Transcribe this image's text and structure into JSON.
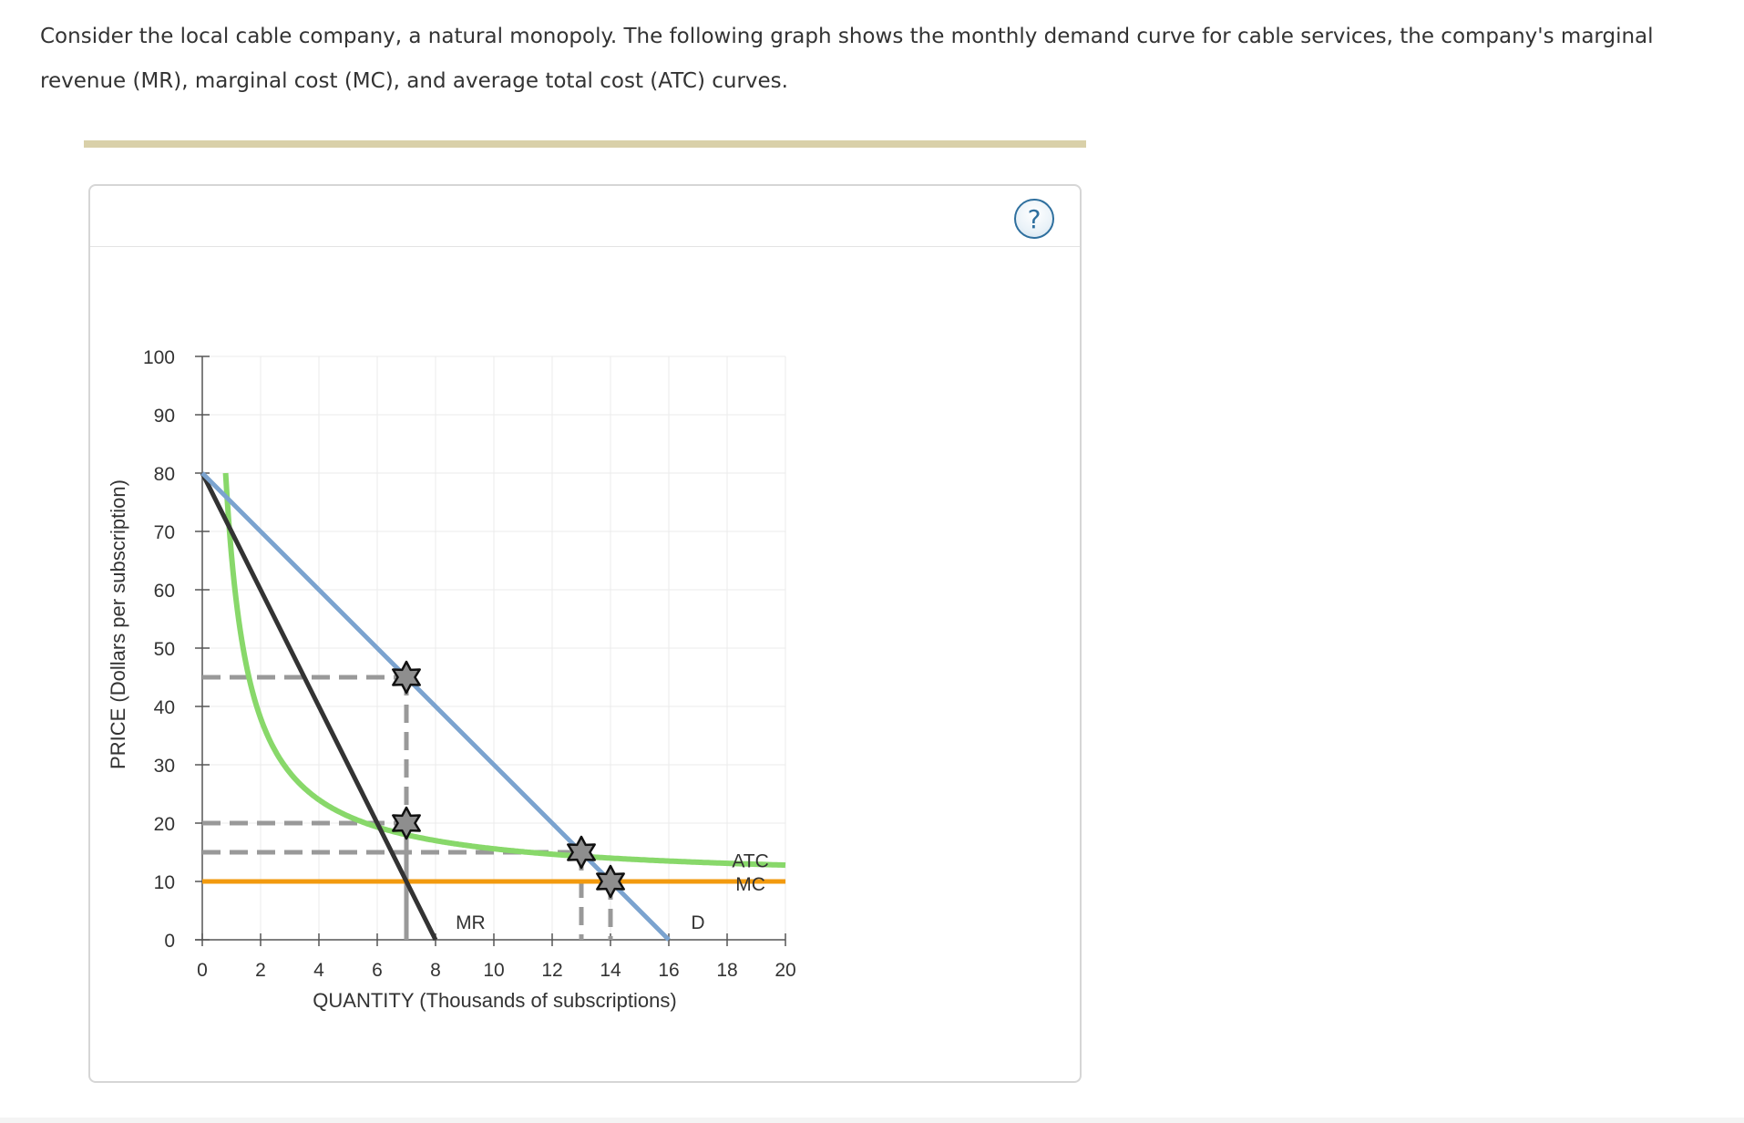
{
  "question": {
    "text": "Consider the local cable company, a natural monopoly. The following graph shows the monthly demand curve for cable services, the company's marginal revenue (MR), marginal cost (MC), and average total cost (ATC) curves."
  },
  "help": {
    "label": "?"
  },
  "colors": {
    "demand": "#7ba3cf",
    "mr": "#333333",
    "atc": "#88d86a",
    "mc": "#f29a0e",
    "dashed": "#999999",
    "grid": "#ebebeb",
    "axis": "#555555"
  },
  "chart_data": {
    "type": "line",
    "xlabel": "QUANTITY (Thousands of subscriptions)",
    "ylabel": "PRICE (Dollars per subscription)",
    "xlim": [
      0,
      20
    ],
    "ylim": [
      0,
      100
    ],
    "x_ticks": [
      0,
      2,
      4,
      6,
      8,
      10,
      12,
      14,
      16,
      18,
      20
    ],
    "y_ticks": [
      0,
      10,
      20,
      30,
      40,
      50,
      60,
      70,
      80,
      90,
      100
    ],
    "grid": true,
    "series": [
      {
        "name": "D",
        "kind": "linear",
        "x": [
          0,
          16
        ],
        "y": [
          80,
          0
        ]
      },
      {
        "name": "MR",
        "kind": "linear",
        "x": [
          0,
          8
        ],
        "y": [
          80,
          0
        ]
      },
      {
        "name": "ATC",
        "kind": "atc",
        "fixed_cost": 56,
        "marginal_cost": 10,
        "x_range": [
          0.8,
          20
        ]
      },
      {
        "name": "MC",
        "kind": "linear",
        "x": [
          0,
          20
        ],
        "y": [
          10,
          10
        ]
      }
    ],
    "points": [
      {
        "x": 7,
        "y": 45
      },
      {
        "x": 7,
        "y": 20
      },
      {
        "x": 13,
        "y": 15
      },
      {
        "x": 14,
        "y": 10
      }
    ],
    "guides": [
      {
        "x": 7,
        "y": 45
      },
      {
        "x": 7,
        "y": 20
      },
      {
        "x": 13,
        "y": 15
      },
      {
        "x": 14,
        "y": 10
      }
    ],
    "labels": [
      {
        "text": "MR",
        "x": 9.2,
        "y": 3
      },
      {
        "text": "D",
        "x": 17,
        "y": 3
      },
      {
        "text": "ATC",
        "x": 18.8,
        "y": 13.5
      },
      {
        "text": "MC",
        "x": 18.8,
        "y": 9.5
      }
    ]
  }
}
